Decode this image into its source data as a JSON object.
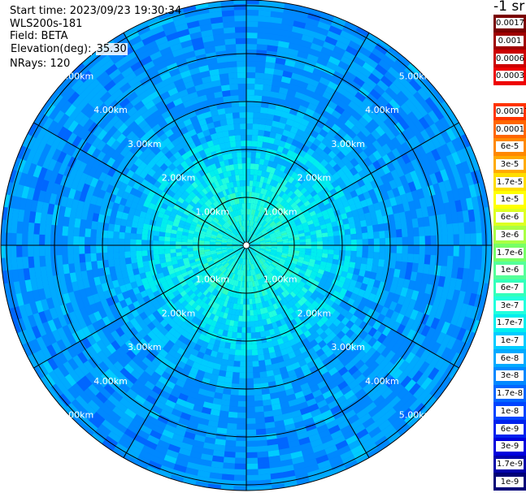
{
  "info": {
    "start_time_label": "Start time:",
    "start_time_value": "2023/09/23 19:30:34",
    "instrument": "WLS200s-181",
    "field_label": "Field:",
    "field_value": "BETA",
    "elevation_label": "Elevation(deg):",
    "elevation_value": "35.30",
    "nrays_label": "NRays:",
    "nrays_value": "120"
  },
  "colorbar": {
    "title": "-1 sr",
    "levels": [
      {
        "label": "0.0017",
        "color": "#7a0000"
      },
      {
        "label": "0.001",
        "color": "#a00000"
      },
      {
        "label": "0.0006",
        "color": "#cc0000"
      },
      {
        "label": "0.0003",
        "color": "#ee0000"
      },
      {
        "label": "",
        "color": "#ffffff"
      },
      {
        "label": "0.00017",
        "color": "#ff3300"
      },
      {
        "label": "0.0001",
        "color": "#ff6600"
      },
      {
        "label": "6e-5",
        "color": "#ff8800"
      },
      {
        "label": "3e-5",
        "color": "#ffaa00"
      },
      {
        "label": "1.7e-5",
        "color": "#ffdd00"
      },
      {
        "label": "1e-5",
        "color": "#ffff00"
      },
      {
        "label": "6e-6",
        "color": "#ddff22"
      },
      {
        "label": "3e-6",
        "color": "#aaff44"
      },
      {
        "label": "1.7e-6",
        "color": "#77ff66"
      },
      {
        "label": "1e-6",
        "color": "#55ff99"
      },
      {
        "label": "6e-7",
        "color": "#33ffbb"
      },
      {
        "label": "3e-7",
        "color": "#22ffdd"
      },
      {
        "label": "1.7e-7",
        "color": "#00eeee"
      },
      {
        "label": "1e-7",
        "color": "#00ccff"
      },
      {
        "label": "6e-8",
        "color": "#00aaff"
      },
      {
        "label": "3e-8",
        "color": "#0088ff"
      },
      {
        "label": "1.7e-8",
        "color": "#0066ff"
      },
      {
        "label": "1e-8",
        "color": "#0044ff"
      },
      {
        "label": "6e-9",
        "color": "#0022ee"
      },
      {
        "label": "3e-9",
        "color": "#0000dd"
      },
      {
        "label": "1.7e-9",
        "color": "#0000aa"
      },
      {
        "label": "1e-9",
        "color": "#000077"
      }
    ]
  },
  "ppi": {
    "rays": 120,
    "range_rings_km": [
      1,
      2,
      3,
      4,
      5
    ],
    "range_labels": [
      "1.00km",
      "2.00km",
      "3.00km",
      "4.00km",
      "5.00km"
    ],
    "spokes_deg": 30
  }
}
